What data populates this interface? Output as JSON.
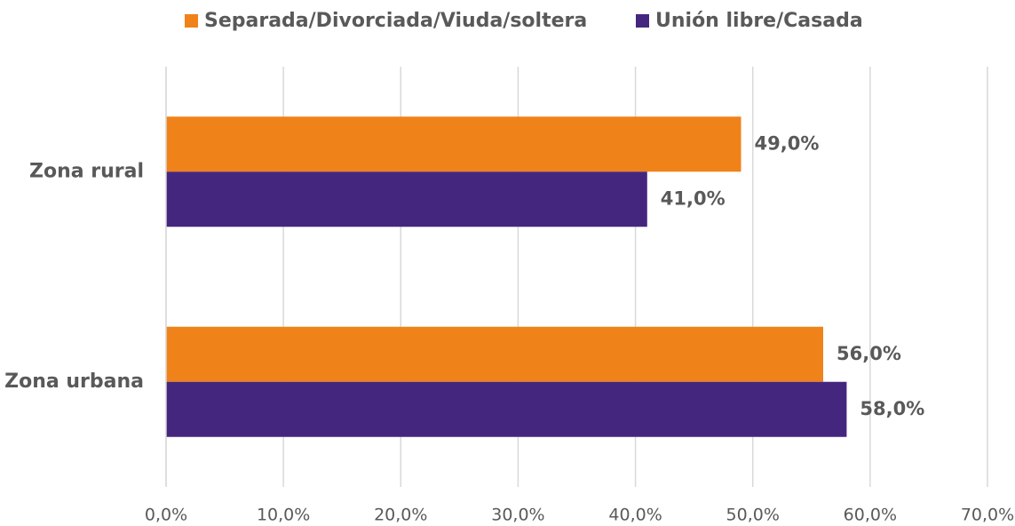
{
  "chart_data": {
    "type": "hbar",
    "categories": [
      "Zona rural",
      "Zona urbana"
    ],
    "series": [
      {
        "name": "Separada/Divorciada/Viuda/soltera",
        "color": "#f0821a",
        "values": [
          49,
          56
        ],
        "value_labels": [
          "49,0%",
          "56,0%"
        ]
      },
      {
        "name": "Unión libre/Casada",
        "color": "#45267e",
        "values": [
          41,
          58
        ],
        "value_labels": [
          "41,0%",
          "58,0%"
        ]
      }
    ],
    "xlim": [
      0,
      70
    ],
    "xticks": [
      {
        "value": 0,
        "label": "0,0%"
      },
      {
        "value": 10,
        "label": "10,0%"
      },
      {
        "value": 20,
        "label": "20,0%"
      },
      {
        "value": 30,
        "label": "30,0%"
      },
      {
        "value": 40,
        "label": "40,0%"
      },
      {
        "value": 50,
        "label": "50,0%"
      },
      {
        "value": 60,
        "label": "60,0%"
      },
      {
        "value": 70,
        "label": "70,0%"
      }
    ],
    "grid": true,
    "legend": "top"
  }
}
